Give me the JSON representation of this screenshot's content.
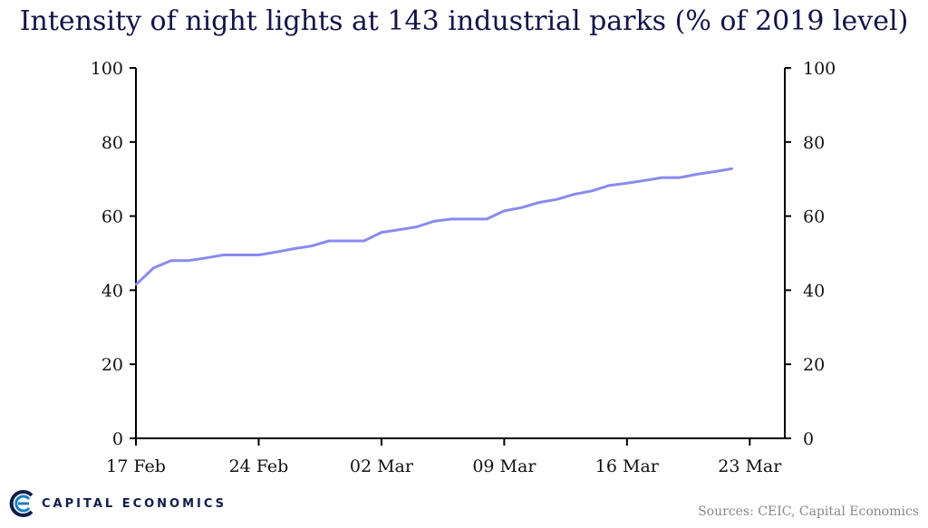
{
  "title": "Intensity of night lights at 143 industrial parks (% of 2019 level)",
  "source": "Sources: CEIC, Capital Economics",
  "logo": {
    "text": "CAPITAL ECONOMICS",
    "icon": "capital-economics-logo-icon",
    "color": "#0f1c4c"
  },
  "chart_data": {
    "type": "line",
    "title": "Intensity of night lights at 143 industrial parks (% of 2019 level)",
    "ylim": [
      0,
      100
    ],
    "y_ticks": [
      0,
      20,
      40,
      60,
      80,
      100
    ],
    "x_ticks": [
      "17 Feb",
      "24 Feb",
      "02 Mar",
      "09 Mar",
      "16 Mar",
      "23 Mar"
    ],
    "grid": false,
    "legend": "none",
    "series": [
      {
        "color": "#8a8af0",
        "x": [
          "17 Feb",
          "18 Feb",
          "19 Feb",
          "20 Feb",
          "21 Feb",
          "22 Feb",
          "23 Feb",
          "24 Feb",
          "25 Feb",
          "26 Feb",
          "27 Feb",
          "28 Feb",
          "29 Feb",
          "01 Mar",
          "02 Mar",
          "03 Mar",
          "04 Mar",
          "05 Mar",
          "06 Mar",
          "07 Mar",
          "08 Mar",
          "09 Mar",
          "10 Mar",
          "11 Mar",
          "12 Mar",
          "13 Mar",
          "14 Mar",
          "15 Mar",
          "16 Mar",
          "17 Mar",
          "18 Mar",
          "19 Mar",
          "20 Mar",
          "21 Mar",
          "22 Mar"
        ],
        "values": [
          41.5,
          46,
          48,
          48,
          48.7,
          49.5,
          49.5,
          49.5,
          50.3,
          51.2,
          51.9,
          53.3,
          53.3,
          53.3,
          55.6,
          56.3,
          57.1,
          58.6,
          59.2,
          59.2,
          59.2,
          61.4,
          62.3,
          63.7,
          64.5,
          65.9,
          66.8,
          68.3,
          68.9,
          69.6,
          70.4,
          70.4,
          71.3,
          72,
          72.8
        ]
      }
    ]
  }
}
